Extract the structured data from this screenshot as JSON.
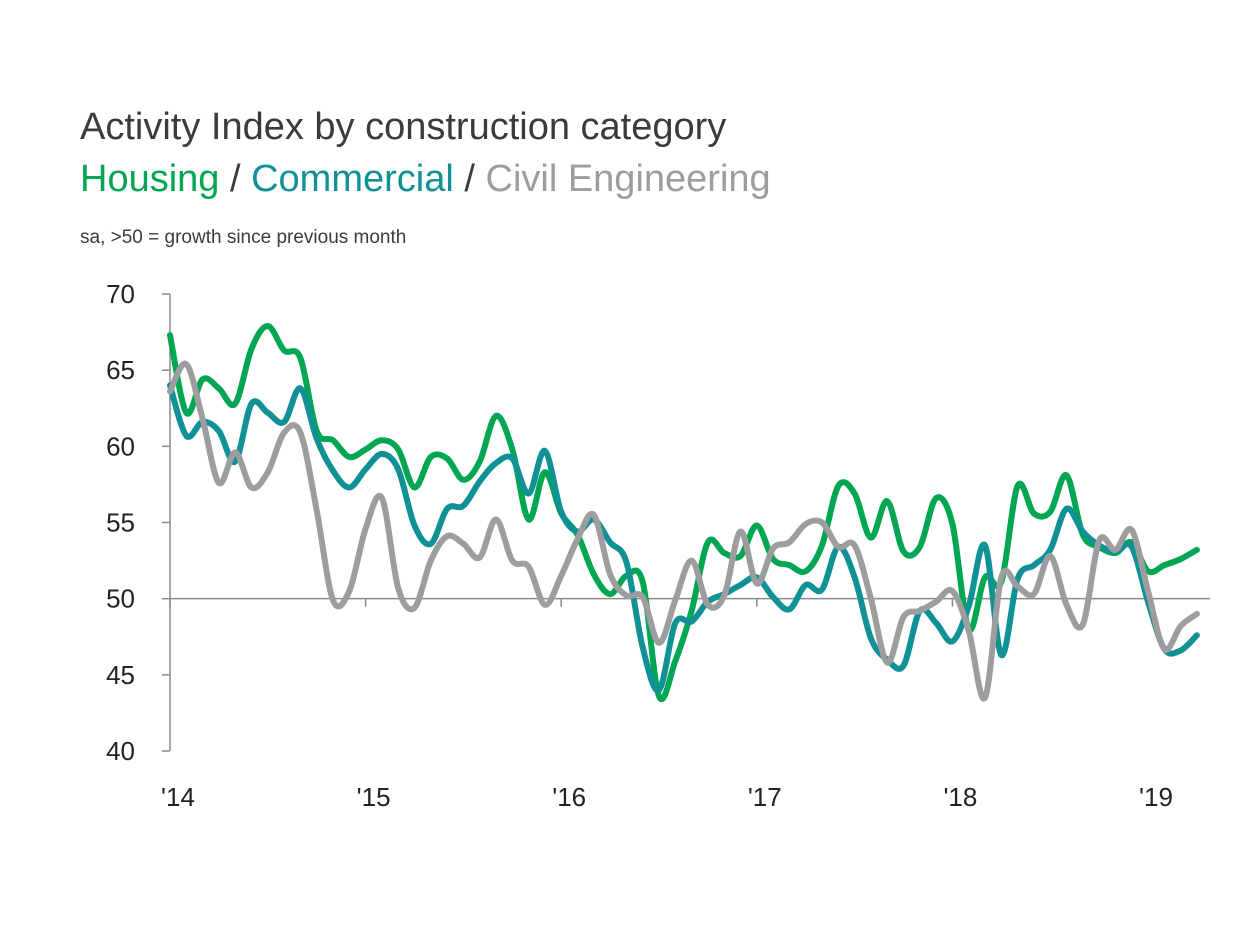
{
  "title": "Activity Index by construction category",
  "subtitle": {
    "housing": "Housing",
    "commercial": "Commercial",
    "civil": "Civil Engineering",
    "separator": " / "
  },
  "note": "sa, >50 = growth since previous month",
  "chart_data": {
    "type": "line",
    "title": "Activity Index by construction category",
    "subtitle": "Housing / Commercial / Civil Engineering",
    "note": "sa, >50 = growth since previous month",
    "xlabel": "",
    "ylabel": "",
    "ylim": [
      40,
      70
    ],
    "yticks": [
      40,
      45,
      50,
      55,
      60,
      65,
      70
    ],
    "x_range": [
      "2014-01",
      "2019-04"
    ],
    "x_tick_labels": [
      {
        "label": "'14",
        "date": "2014-01"
      },
      {
        "label": "'15",
        "date": "2015-01"
      },
      {
        "label": "'16",
        "date": "2016-01"
      },
      {
        "label": "'17",
        "date": "2017-01"
      },
      {
        "label": "'18",
        "date": "2018-01"
      },
      {
        "label": "'19",
        "date": "2019-01"
      }
    ],
    "reference_line": 50,
    "grid": false,
    "legend": "none (series named by coloured subtitle)",
    "x": [
      "2014-01",
      "2014-02",
      "2014-03",
      "2014-04",
      "2014-05",
      "2014-06",
      "2014-07",
      "2014-08",
      "2014-09",
      "2014-10",
      "2014-11",
      "2014-12",
      "2015-01",
      "2015-02",
      "2015-03",
      "2015-04",
      "2015-05",
      "2015-06",
      "2015-07",
      "2015-08",
      "2015-09",
      "2015-10",
      "2015-11",
      "2015-12",
      "2016-01",
      "2016-02",
      "2016-03",
      "2016-04",
      "2016-05",
      "2016-06",
      "2016-07",
      "2016-08",
      "2016-09",
      "2016-10",
      "2016-11",
      "2016-12",
      "2017-01",
      "2017-02",
      "2017-03",
      "2017-04",
      "2017-05",
      "2017-06",
      "2017-07",
      "2017-08",
      "2017-09",
      "2017-10",
      "2017-11",
      "2017-12",
      "2018-01",
      "2018-02",
      "2018-03",
      "2018-04",
      "2018-05",
      "2018-06",
      "2018-07",
      "2018-08",
      "2018-09",
      "2018-10",
      "2018-11",
      "2018-12",
      "2019-01",
      "2019-02",
      "2019-03",
      "2019-04"
    ],
    "series": [
      {
        "name": "Housing",
        "color": "#00a651",
        "values": [
          67.3,
          62.2,
          64.4,
          63.8,
          62.8,
          66.4,
          67.9,
          66.3,
          65.8,
          61.0,
          60.4,
          59.3,
          59.8,
          60.4,
          59.8,
          57.3,
          59.3,
          59.2,
          57.8,
          59.0,
          62.0,
          59.8,
          55.2,
          58.3,
          55.6,
          54.2,
          51.6,
          50.3,
          51.5,
          51.1,
          43.6,
          45.9,
          49.2,
          53.7,
          53.0,
          52.8,
          54.8,
          52.6,
          52.2,
          51.8,
          53.5,
          57.4,
          56.9,
          54.0,
          56.4,
          53.1,
          53.4,
          56.6,
          54.9,
          48.0,
          51.4,
          51.1,
          57.4,
          55.6,
          55.7,
          58.1,
          54.2,
          53.4,
          53.0,
          53.7,
          51.8,
          52.2,
          52.6,
          53.2
        ]
      },
      {
        "name": "Commercial",
        "color": "#0f9196",
        "values": [
          64.0,
          60.7,
          61.6,
          61.0,
          59.0,
          62.8,
          62.2,
          61.6,
          63.8,
          60.5,
          58.4,
          57.3,
          58.5,
          59.5,
          58.5,
          54.8,
          53.6,
          55.9,
          56.1,
          57.7,
          58.9,
          59.2,
          56.9,
          59.7,
          55.7,
          54.4,
          55.2,
          53.7,
          52.4,
          46.8,
          44.0,
          48.4,
          48.5,
          49.8,
          50.3,
          50.9,
          51.4,
          50.1,
          49.3,
          50.9,
          50.6,
          53.4,
          51.4,
          47.4,
          46.0,
          45.6,
          49.2,
          48.4,
          47.2,
          49.5,
          53.5,
          46.3,
          51.3,
          52.2,
          53.2,
          55.9,
          54.4,
          53.5,
          53.1,
          53.4,
          49.8,
          46.7,
          46.6,
          47.6
        ]
      },
      {
        "name": "Civil Engineering",
        "color": "#9d9d9f",
        "values": [
          63.6,
          65.4,
          61.8,
          57.6,
          59.6,
          57.3,
          58.3,
          60.9,
          60.9,
          55.8,
          49.9,
          50.5,
          54.6,
          56.6,
          50.7,
          49.4,
          52.5,
          54.1,
          53.6,
          52.7,
          55.2,
          52.5,
          52.1,
          49.6,
          51.5,
          53.9,
          55.5,
          51.6,
          50.2,
          50.1,
          47.1,
          49.9,
          52.5,
          49.6,
          50.2,
          54.4,
          51.0,
          53.3,
          53.7,
          54.9,
          55.0,
          53.4,
          53.5,
          50.0,
          45.8,
          48.8,
          49.2,
          49.8,
          50.5,
          47.9,
          43.5,
          51.4,
          50.8,
          50.3,
          52.8,
          49.6,
          48.3,
          53.8,
          53.2,
          54.5,
          50.5,
          46.7,
          48.2,
          49.0
        ]
      }
    ]
  }
}
